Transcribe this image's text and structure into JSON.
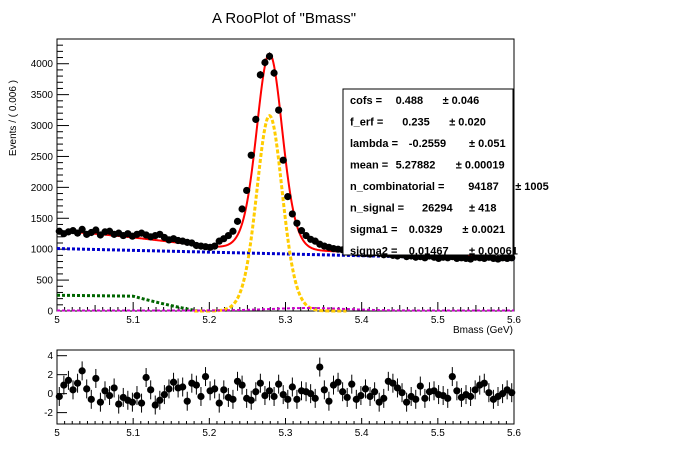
{
  "chart_data": [
    {
      "type": "scatter",
      "title": "A RooPlot of \"Bmass\"",
      "xlabel": "Bmass (GeV)",
      "ylabel": "Events / ( 0.006 )",
      "xlim": [
        5.0,
        5.6
      ],
      "ylim": [
        0,
        4400
      ],
      "x_ticks": [
        "5",
        "5.1",
        "5.2",
        "5.3",
        "5.4",
        "5.5",
        "5.6"
      ],
      "y_ticks": [
        "0",
        "500",
        "1000",
        "1500",
        "2000",
        "2500",
        "3000",
        "3500",
        "4000"
      ],
      "grid": false,
      "legend": "top-right",
      "data_points": {
        "x": [
          5.003,
          5.009,
          5.015,
          5.021,
          5.027,
          5.033,
          5.039,
          5.045,
          5.051,
          5.057,
          5.063,
          5.069,
          5.075,
          5.081,
          5.087,
          5.093,
          5.099,
          5.105,
          5.111,
          5.117,
          5.123,
          5.129,
          5.135,
          5.141,
          5.147,
          5.153,
          5.159,
          5.165,
          5.171,
          5.177,
          5.183,
          5.189,
          5.195,
          5.201,
          5.207,
          5.213,
          5.219,
          5.225,
          5.231,
          5.237,
          5.243,
          5.249,
          5.255,
          5.261,
          5.267,
          5.273,
          5.279,
          5.285,
          5.291,
          5.297,
          5.303,
          5.309,
          5.315,
          5.321,
          5.327,
          5.333,
          5.339,
          5.345,
          5.351,
          5.357,
          5.363,
          5.369,
          5.375,
          5.381,
          5.387,
          5.393,
          5.399,
          5.405,
          5.411,
          5.417,
          5.423,
          5.429,
          5.435,
          5.441,
          5.447,
          5.453,
          5.459,
          5.465,
          5.471,
          5.477,
          5.483,
          5.489,
          5.495,
          5.501,
          5.507,
          5.513,
          5.519,
          5.525,
          5.531,
          5.537,
          5.543,
          5.549,
          5.555,
          5.561,
          5.567,
          5.573,
          5.579,
          5.585,
          5.591,
          5.597
        ],
        "y": [
          1290,
          1250,
          1280,
          1300,
          1260,
          1320,
          1240,
          1270,
          1310,
          1230,
          1280,
          1290,
          1240,
          1260,
          1220,
          1250,
          1210,
          1240,
          1260,
          1230,
          1200,
          1220,
          1240,
          1190,
          1150,
          1170,
          1140,
          1130,
          1110,
          1100,
          1060,
          1050,
          1040,
          1030,
          1050,
          1130,
          1170,
          1220,
          1290,
          1450,
          1650,
          1950,
          2520,
          3100,
          3820,
          4020,
          4120,
          3850,
          3250,
          2440,
          1850,
          1570,
          1420,
          1300,
          1220,
          1160,
          1130,
          1080,
          1050,
          1030,
          1010,
          1000,
          990,
          970,
          960,
          940,
          950,
          930,
          920,
          940,
          930,
          910,
          920,
          900,
          890,
          910,
          880,
          890,
          870,
          880,
          860,
          890,
          870,
          850,
          870,
          860,
          880,
          850,
          860,
          850,
          840,
          870,
          860,
          850,
          870,
          850,
          840,
          860,
          850,
          860
        ],
        "marker": "filled-circle",
        "color": "#000000"
      },
      "curves": [
        {
          "name": "total",
          "color": "#ff0000",
          "style": "solid"
        },
        {
          "name": "combinatorial",
          "color": "#0000cc",
          "style": "dashed"
        },
        {
          "name": "signal",
          "color": "#ffcc00",
          "style": "dashed"
        },
        {
          "name": "erf",
          "color": "#006600",
          "style": "dashed"
        },
        {
          "name": "bkg",
          "color": "#cc00cc",
          "style": "dashed"
        }
      ],
      "parameters": [
        {
          "name": "cofs =",
          "value": "0.488",
          "error": "± 0.046"
        },
        {
          "name": "f_erf =",
          "value": "0.235",
          "error": "± 0.020"
        },
        {
          "name": "lambda =",
          "value": "-0.2559",
          "error": "± 0.051"
        },
        {
          "name": "mean =",
          "value": "5.27882",
          "error": "± 0.00019"
        },
        {
          "name": "n_combinatorial =",
          "value": "94187",
          "error": "± 1005"
        },
        {
          "name": "n_signal =",
          "value": "26294",
          "error": "± 418"
        },
        {
          "name": "sigma1 =",
          "value": "0.0329",
          "error": "± 0.0021"
        },
        {
          "name": "sigma2 =",
          "value": "0.01467",
          "error": "± 0.00061"
        }
      ]
    },
    {
      "type": "scatter",
      "title": "",
      "xlabel": "",
      "ylabel": "",
      "xlim": [
        5.0,
        5.6
      ],
      "ylim": [
        -3.2,
        4.6
      ],
      "x_ticks": [
        "5",
        "5.1",
        "5.2",
        "5.3",
        "5.4",
        "5.5",
        "5.6"
      ],
      "y_ticks": [
        "-2",
        "0",
        "2",
        "4"
      ],
      "grid": false,
      "pulls": {
        "x": [
          5.003,
          5.009,
          5.015,
          5.021,
          5.027,
          5.033,
          5.039,
          5.045,
          5.051,
          5.057,
          5.063,
          5.069,
          5.075,
          5.081,
          5.087,
          5.093,
          5.099,
          5.105,
          5.111,
          5.117,
          5.123,
          5.129,
          5.135,
          5.141,
          5.147,
          5.153,
          5.159,
          5.165,
          5.171,
          5.177,
          5.183,
          5.189,
          5.195,
          5.201,
          5.207,
          5.213,
          5.219,
          5.225,
          5.231,
          5.237,
          5.243,
          5.249,
          5.255,
          5.261,
          5.267,
          5.273,
          5.279,
          5.285,
          5.291,
          5.297,
          5.303,
          5.309,
          5.315,
          5.321,
          5.327,
          5.333,
          5.339,
          5.345,
          5.351,
          5.357,
          5.363,
          5.369,
          5.375,
          5.381,
          5.387,
          5.393,
          5.399,
          5.405,
          5.411,
          5.417,
          5.423,
          5.429,
          5.435,
          5.441,
          5.447,
          5.453,
          5.459,
          5.465,
          5.471,
          5.477,
          5.483,
          5.489,
          5.495,
          5.501,
          5.507,
          5.513,
          5.519,
          5.525,
          5.531,
          5.537,
          5.543,
          5.549,
          5.555,
          5.561,
          5.567,
          5.573,
          5.579,
          5.585,
          5.591,
          5.597
        ],
        "y": [
          -0.3,
          0.9,
          1.4,
          0.4,
          1.1,
          2.4,
          0.5,
          -0.6,
          1.6,
          -0.9,
          0.3,
          -0.2,
          0.6,
          -1.1,
          -0.4,
          -0.7,
          -0.9,
          -0.2,
          -1.0,
          1.7,
          0.4,
          -1.2,
          -0.7,
          -0.1,
          0.5,
          1.2,
          0.6,
          0.7,
          -0.8,
          1.1,
          0.9,
          -0.3,
          1.8,
          0.3,
          0.5,
          -1.0,
          0.4,
          -0.4,
          -0.6,
          1.3,
          0.9,
          -0.5,
          -0.7,
          0.2,
          1.1,
          -0.2,
          0.3,
          -0.3,
          1.0,
          -0.1,
          -0.6,
          0.7,
          -0.6,
          0.3,
          0.2,
          0.0,
          -0.5,
          2.8,
          0.4,
          -0.8,
          0.9,
          1.2,
          0.2,
          -0.4,
          1.0,
          -0.6,
          -0.2,
          0.5,
          -0.3,
          0.2,
          -0.9,
          -0.5,
          1.3,
          1.1,
          0.6,
          0.1,
          -0.9,
          -0.3,
          -0.6,
          0.8,
          -0.5,
          0.2,
          0.3,
          -0.1,
          -0.2,
          -0.5,
          1.8,
          0.3,
          -0.4,
          -0.1,
          -0.3,
          0.4,
          0.9,
          1.1,
          0.1,
          -0.6,
          -0.3,
          0.0,
          0.4,
          0.1
        ],
        "error": 1.0,
        "marker": "filled-circle",
        "color": "#000000"
      }
    }
  ]
}
